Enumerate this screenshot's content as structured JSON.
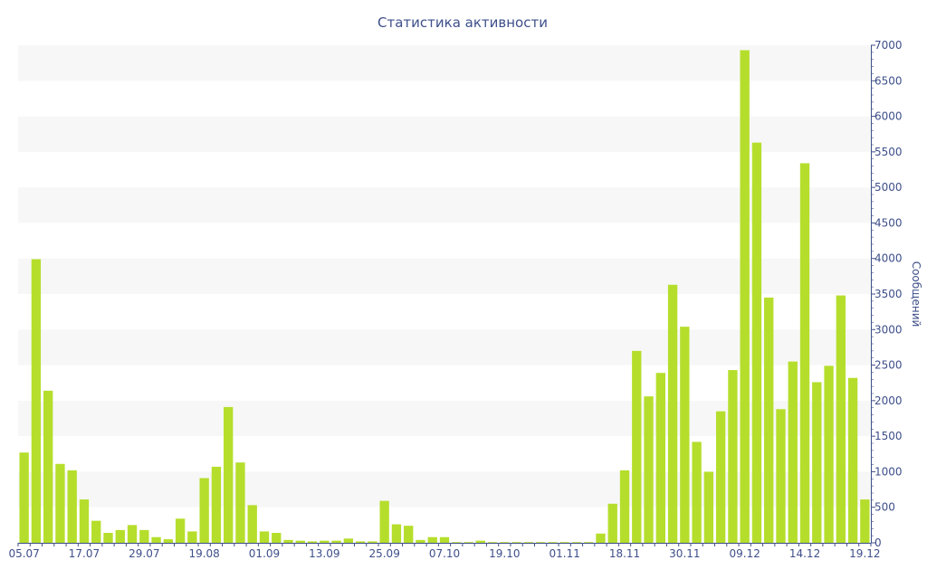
{
  "chart_data": {
    "type": "bar",
    "title": "Статистика активности",
    "xlabel": "",
    "ylabel": "Сообщений",
    "ylim": [
      0,
      7000
    ],
    "y_ticks": [
      0,
      500,
      1000,
      1500,
      2000,
      2500,
      3000,
      3500,
      4000,
      4500,
      5000,
      5500,
      6000,
      6500,
      7000
    ],
    "x_tick_labels": [
      "05.07",
      "17.07",
      "29.07",
      "19.08",
      "01.09",
      "13.09",
      "25.09",
      "07.10",
      "19.10",
      "01.11",
      "18.11",
      "30.11",
      "09.12",
      "14.12",
      "19.12"
    ],
    "x_tick_index": [
      0,
      5,
      10,
      15,
      20,
      25,
      30,
      35,
      40,
      45,
      50,
      55,
      60,
      65,
      70
    ],
    "grid": "horizontal alternating bands",
    "axis_position": "right",
    "bar_color": "#b5de2c",
    "text_color": "#3e4f8a",
    "band_color": "#f7f7f7",
    "values": [
      1270,
      3990,
      2140,
      1110,
      1020,
      610,
      310,
      140,
      180,
      250,
      180,
      80,
      50,
      340,
      160,
      910,
      1070,
      1910,
      1130,
      530,
      160,
      140,
      40,
      30,
      20,
      30,
      30,
      60,
      20,
      20,
      590,
      260,
      240,
      40,
      80,
      80,
      10,
      10,
      30,
      10,
      10,
      10,
      10,
      10,
      10,
      10,
      10,
      10,
      130,
      550,
      1020,
      2700,
      2060,
      2390,
      3630,
      3040,
      1420,
      1000,
      1850,
      2430,
      6930,
      5630,
      3450,
      1880,
      2550,
      5340,
      2260,
      2490,
      3480,
      2320,
      610
    ]
  }
}
